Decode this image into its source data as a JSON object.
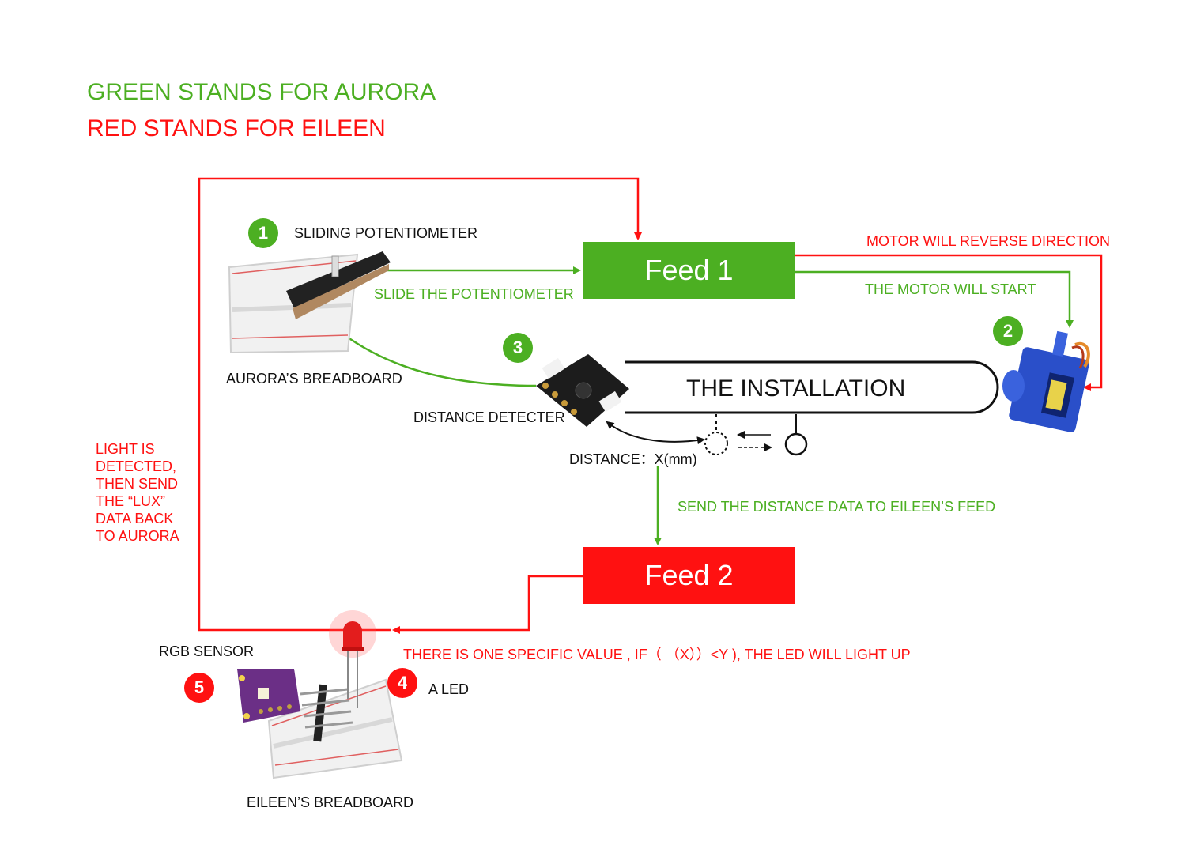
{
  "legend": {
    "green": "GREEN STANDS FOR AURORA",
    "red": "RED STANDS FOR EILEEN"
  },
  "colors": {
    "aurora": "#4caf22",
    "eileen": "#ff1111"
  },
  "feeds": {
    "feed1": "Feed 1",
    "feed2": "Feed 2"
  },
  "installation": "THE INSTALLATION",
  "components": {
    "c1": {
      "number": "1",
      "label": "SLIDING POTENTIOMETER"
    },
    "c2": {
      "number": "2"
    },
    "c3": {
      "number": "3",
      "label": "DISTANCE DETECTER"
    },
    "c4": {
      "number": "4",
      "label": "A LED"
    },
    "c5": {
      "number": "5",
      "label": "RGB SENSOR"
    }
  },
  "breadboards": {
    "aurora": "AURORA’S BREADBOARD",
    "eileen": "EILEEN’S BREADBOARD"
  },
  "annotations": {
    "slide": "SLIDE THE POTENTIOMETER",
    "motor_start": "THE MOTOR WILL START",
    "motor_reverse": "MOTOR WILL REVERSE DIRECTION",
    "distance": "DISTANCE：X(mm)",
    "send_distance": "SEND THE DISTANCE DATA TO EILEEN’S FEED",
    "led_rule": "THERE IS ONE SPECIFIC VALUE , IF（ （X））<Y ), THE LED WILL LIGHT UP",
    "light_detected": [
      "LIGHT IS",
      "DETECTED,",
      "THEN SEND",
      "THE “LUX”",
      "DATA BACK",
      "TO AURORA"
    ]
  },
  "icons": {
    "potentiometer": "sliding-potentiometer-icon",
    "servo": "servo-motor-icon",
    "sensor": "distance-sensor-icon",
    "led": "red-led-icon",
    "rgb": "rgb-sensor-icon"
  }
}
